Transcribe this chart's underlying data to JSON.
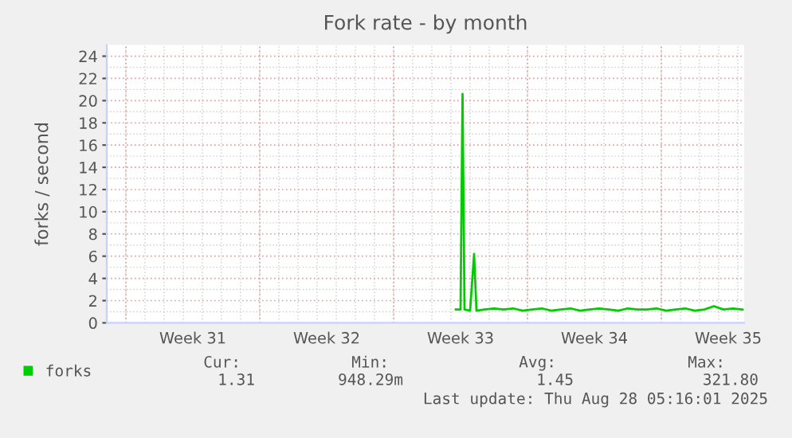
{
  "chart_data": {
    "type": "line",
    "title": "Fork rate - by month",
    "ylabel": "forks / second",
    "x": [
      "2025-08-14T06:00",
      "2025-08-14T12:00",
      "2025-08-14T14:30",
      "2025-08-14T17:00",
      "2025-08-15T00:00",
      "2025-08-15T05:00",
      "2025-08-15T08:00",
      "2025-08-15T18:00",
      "2025-08-16T06:00",
      "2025-08-16T18:00",
      "2025-08-17T06:00",
      "2025-08-17T18:00",
      "2025-08-18T06:00",
      "2025-08-18T18:00",
      "2025-08-19T06:00",
      "2025-08-19T18:00",
      "2025-08-20T06:00",
      "2025-08-20T18:00",
      "2025-08-21T06:00",
      "2025-08-21T18:00",
      "2025-08-22T06:00",
      "2025-08-22T18:00",
      "2025-08-23T06:00",
      "2025-08-23T18:00",
      "2025-08-24T06:00",
      "2025-08-24T18:00",
      "2025-08-25T06:00",
      "2025-08-25T18:00",
      "2025-08-26T06:00",
      "2025-08-26T18:00",
      "2025-08-27T06:00",
      "2025-08-27T18:00",
      "2025-08-28T06:00",
      "2025-08-28T18:00",
      "2025-08-29T06:00"
    ],
    "series": [
      {
        "name": "forks",
        "color": "#00cc00",
        "values": [
          1.2,
          1.2,
          20.6,
          1.2,
          1.1,
          6.2,
          1.1,
          1.2,
          1.3,
          1.2,
          1.3,
          1.1,
          1.2,
          1.3,
          1.1,
          1.2,
          1.3,
          1.1,
          1.2,
          1.3,
          1.2,
          1.1,
          1.3,
          1.2,
          1.2,
          1.3,
          1.1,
          1.2,
          1.3,
          1.1,
          1.2,
          1.5,
          1.2,
          1.3,
          1.2
        ]
      }
    ],
    "xlim": [
      "2025-07-27T00:00",
      "2025-08-29T08:00"
    ],
    "xticks": [
      {
        "value": "2025-07-28T00:00",
        "label": null
      },
      {
        "value": "2025-07-31T12:00",
        "label": "Week 31"
      },
      {
        "value": "2025-08-04T00:00",
        "label": null
      },
      {
        "value": "2025-08-07T12:00",
        "label": "Week 32"
      },
      {
        "value": "2025-08-11T00:00",
        "label": null
      },
      {
        "value": "2025-08-14T12:00",
        "label": "Week 33"
      },
      {
        "value": "2025-08-18T00:00",
        "label": null
      },
      {
        "value": "2025-08-21T12:00",
        "label": "Week 34"
      },
      {
        "value": "2025-08-25T00:00",
        "label": null
      },
      {
        "value": "2025-08-28T12:00",
        "label": "Week 35"
      }
    ],
    "ylim": [
      0,
      25
    ],
    "yticks": [
      0,
      2,
      4,
      6,
      8,
      10,
      12,
      14,
      16,
      18,
      20,
      22,
      24
    ],
    "grid": true,
    "legend": "bottom left",
    "annotations": [
      "Cur:",
      "Min:",
      "Avg:",
      "Max:",
      "1.31",
      "948.29m",
      "1.45",
      "321.80",
      "Last update: Thu Aug 28 05:16:01 2025"
    ]
  }
}
